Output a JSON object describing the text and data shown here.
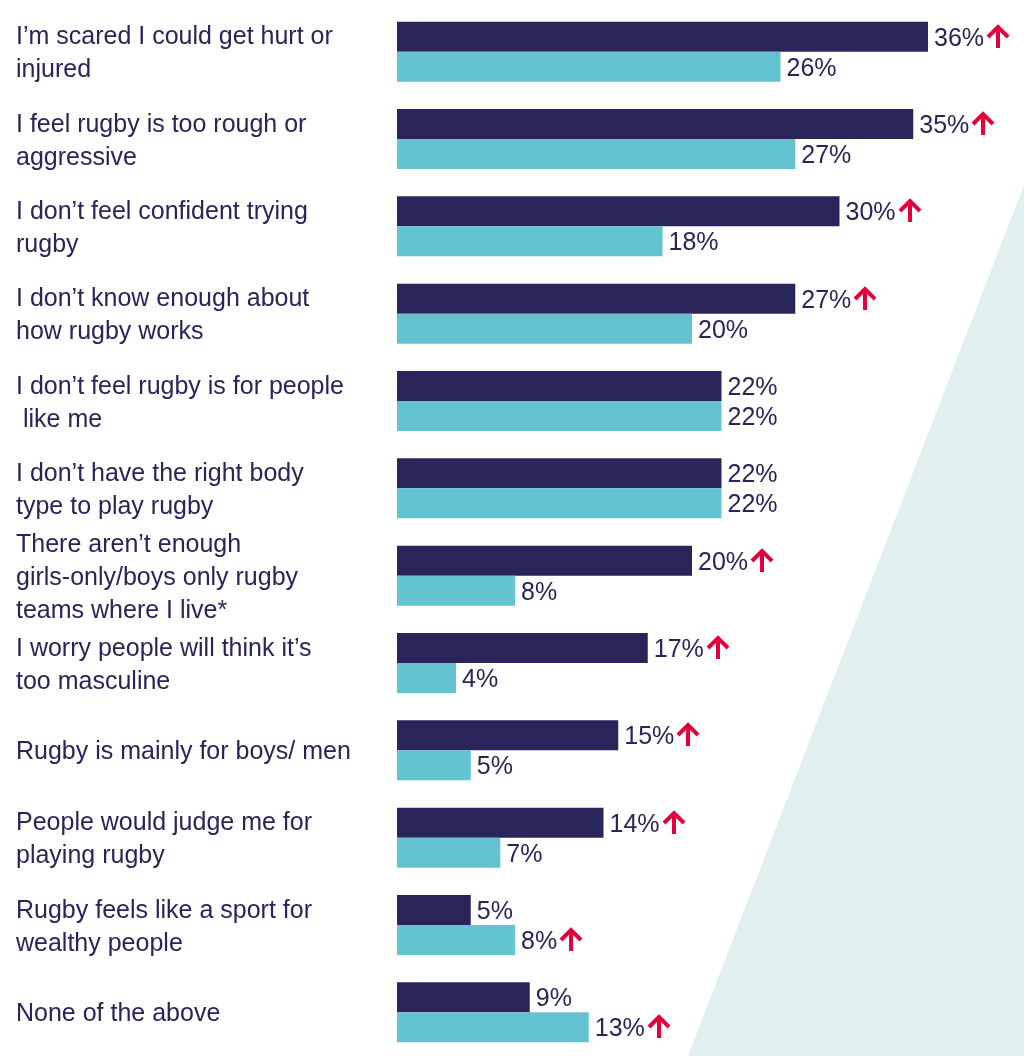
{
  "chart_data": {
    "type": "bar",
    "orientation": "horizontal",
    "categories": [
      "I’m scared I could get hurt or injured",
      "I feel rugby is too rough or aggressive",
      "I don’t feel confident trying rugby",
      "I don’t know enough about how rugby works",
      "I don’t feel rugby is for people like me",
      "I don’t have the right body type to play rugby",
      "There aren’t enough girls-only/boys only rugby teams where I live*",
      "I worry people will think it’s too masculine",
      "Rugby is mainly for boys/ men",
      "People would judge me for playing rugby",
      "Rugby feels like a sport for wealthy people",
      "None of the above"
    ],
    "series": [
      {
        "color": "#29245a",
        "values": [
          36,
          35,
          30,
          27,
          22,
          22,
          20,
          17,
          15,
          14,
          5,
          9
        ],
        "value_labels": [
          "36%",
          "35%",
          "30%",
          "27%",
          "22%",
          "22%",
          "20%",
          "17%",
          "15%",
          "14%",
          "5%",
          "9%"
        ]
      },
      {
        "color": "#63c3d1",
        "values": [
          26,
          27,
          18,
          20,
          22,
          22,
          8,
          4,
          5,
          7,
          8,
          13
        ],
        "value_labels": [
          "26%",
          "27%",
          "18%",
          "20%",
          "22%",
          "22%",
          "8%",
          "4%",
          "5%",
          "7%",
          "8%",
          "13%"
        ]
      }
    ]
  }
}
